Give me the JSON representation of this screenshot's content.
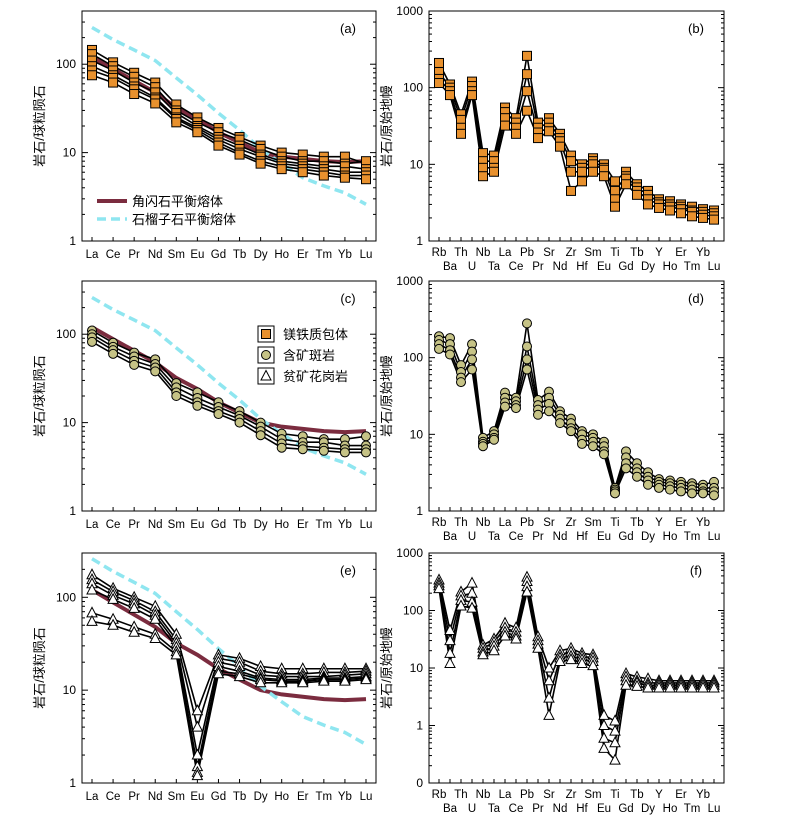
{
  "figure": {
    "legend_lines": [
      "角闪石平衡熔体",
      "石榴子石平衡熔体"
    ],
    "legend_symbols": [
      "镁铁质包体",
      "含矿斑岩",
      "贫矿花岗岩"
    ]
  },
  "colors": {
    "amphibole_line": "#7b2c3f",
    "garnet_line": "#8fe6f0",
    "enclave_fill": "#e8912e",
    "porphyry_fill": "#c6c386",
    "granite_fill": "#ffffff",
    "series_line": "#000000"
  },
  "chart_data": [
    {
      "panel": "(a)",
      "type": "line",
      "yscale": "log",
      "ylim": [
        1,
        400
      ],
      "ylabel": "岩石/球粒陨石",
      "categories": [
        "La",
        "Ce",
        "Pr",
        "Nd",
        "Sm",
        "Eu",
        "Gd",
        "Tb",
        "Dy",
        "Ho",
        "Er",
        "Tm",
        "Yb",
        "Lu"
      ],
      "yticks": [
        "1",
        "10",
        "100"
      ],
      "reference_lines": [
        {
          "name": "角闪石平衡熔体",
          "style": "amphibole",
          "values": [
            120,
            88,
            65,
            48,
            32,
            24,
            17,
            13,
            10,
            9,
            8.5,
            8,
            7.8,
            8
          ]
        },
        {
          "name": "石榴子石平衡熔体",
          "style": "garnet",
          "values": [
            260,
            190,
            145,
            110,
            70,
            45,
            28,
            18,
            11,
            7.5,
            5.2,
            4.2,
            3.5,
            2.6
          ]
        }
      ],
      "marker": "square",
      "series": [
        {
          "values": [
            145,
            105,
            80,
            62,
            35,
            25,
            19,
            15,
            12,
            10,
            9.5,
            9,
            9,
            7.5
          ]
        },
        {
          "values": [
            130,
            95,
            72,
            55,
            30,
            22,
            17,
            14,
            11,
            9,
            8,
            8,
            7.5,
            8
          ]
        },
        {
          "values": [
            110,
            85,
            62,
            48,
            28,
            20,
            15,
            12,
            9.5,
            8,
            7.5,
            7,
            7,
            6.5
          ]
        },
        {
          "values": [
            95,
            75,
            56,
            42,
            25,
            19,
            14,
            11,
            9,
            7.5,
            7,
            6.5,
            6,
            6
          ]
        },
        {
          "values": [
            85,
            70,
            52,
            40,
            24,
            18,
            13,
            10,
            8,
            7,
            6.5,
            6,
            5.5,
            5.5
          ]
        },
        {
          "values": [
            75,
            62,
            46,
            36,
            22,
            17,
            12,
            9.5,
            7.5,
            6.5,
            6,
            5.5,
            5.2,
            5
          ]
        }
      ]
    },
    {
      "panel": "(b)",
      "type": "line",
      "yscale": "log",
      "ylim": [
        1,
        1000
      ],
      "ylabel": "岩石/原始地幔",
      "categories": [
        "Rb",
        "Ba",
        "Th",
        "U",
        "Nb",
        "Ta",
        "La",
        "Ce",
        "Pb",
        "Pr",
        "Sr",
        "Nd",
        "Zr",
        "Hf",
        "Sm",
        "Eu",
        "Ti",
        "Gd",
        "Tb",
        "Dy",
        "Y",
        "Ho",
        "Er",
        "Tm",
        "Yb",
        "Lu"
      ],
      "yticks": [
        "1",
        "10",
        "100",
        "1000"
      ],
      "marker": "square",
      "series": [
        {
          "values": [
            210,
            110,
            45,
            120,
            14,
            13,
            55,
            40,
            260,
            35,
            40,
            25,
            13,
            10,
            12,
            10,
            6,
            8,
            5.5,
            4.5,
            3.5,
            3.3,
            3,
            2.8,
            2.6,
            2.5
          ]
        },
        {
          "values": [
            160,
            100,
            38,
            105,
            11,
            11,
            48,
            35,
            150,
            30,
            35,
            22,
            11,
            9,
            11,
            9,
            4.5,
            7,
            5,
            4,
            3.2,
            3,
            2.8,
            2.5,
            2.4,
            2.3
          ]
        },
        {
          "values": [
            130,
            90,
            30,
            90,
            9,
            9,
            40,
            30,
            90,
            26,
            30,
            20,
            8,
            8,
            10,
            8.5,
            3.5,
            6.5,
            4.5,
            3.5,
            3,
            2.8,
            2.6,
            2.4,
            2.2,
            2.1
          ]
        },
        {
          "values": [
            115,
            80,
            25,
            80,
            7,
            8,
            32,
            25,
            50,
            22,
            27,
            17,
            4.5,
            6,
            8,
            7,
            2.8,
            5.5,
            4,
            3,
            2.7,
            2.5,
            2.3,
            2.1,
            2,
            1.9
          ]
        }
      ]
    },
    {
      "panel": "(c)",
      "type": "line",
      "yscale": "log",
      "ylim": [
        1,
        400
      ],
      "ylabel": "岩石/球粒陨石",
      "categories": [
        "La",
        "Ce",
        "Pr",
        "Nd",
        "Sm",
        "Eu",
        "Gd",
        "Tb",
        "Dy",
        "Ho",
        "Er",
        "Tm",
        "Yb",
        "Lu"
      ],
      "yticks": [
        "1",
        "10",
        "100"
      ],
      "reference_lines": [
        {
          "name": "角闪石平衡熔体",
          "style": "amphibole",
          "values": [
            120,
            88,
            65,
            48,
            32,
            24,
            17,
            13,
            10,
            9,
            8.5,
            8,
            7.8,
            8
          ]
        },
        {
          "name": "石榴子石平衡熔体",
          "style": "garnet",
          "values": [
            260,
            190,
            145,
            110,
            70,
            45,
            28,
            18,
            11,
            7.5,
            5.2,
            4.2,
            3.5,
            2.6
          ]
        }
      ],
      "marker": "circle",
      "series": [
        {
          "values": [
            110,
            80,
            62,
            52,
            28,
            22,
            17,
            13.5,
            10,
            7.5,
            7,
            6.5,
            6.5,
            7
          ]
        },
        {
          "values": [
            100,
            72,
            56,
            46,
            25,
            19,
            15,
            12,
            9,
            6.5,
            6,
            6,
            5.5,
            5.5
          ]
        },
        {
          "values": [
            92,
            66,
            50,
            42,
            22,
            17,
            13.5,
            11,
            8,
            5.8,
            5.4,
            5.2,
            5,
            5
          ]
        },
        {
          "values": [
            82,
            60,
            45,
            38,
            20,
            15.5,
            12.5,
            10,
            7.2,
            5.2,
            5,
            4.8,
            4.6,
            4.6
          ]
        }
      ],
      "legend": [
        "镁铁质包体",
        "含矿斑岩",
        "贫矿花岗岩"
      ]
    },
    {
      "panel": "(d)",
      "type": "line",
      "yscale": "log",
      "ylim": [
        1,
        1000
      ],
      "ylabel": "岩石/原始地幔",
      "categories": [
        "Rb",
        "Ba",
        "Th",
        "U",
        "Nb",
        "Ta",
        "La",
        "Ce",
        "Pb",
        "Pr",
        "Sr",
        "Nd",
        "Zr",
        "Hf",
        "Sm",
        "Eu",
        "Ti",
        "Gd",
        "Tb",
        "Dy",
        "Y",
        "Ho",
        "Er",
        "Tm",
        "Yb",
        "Lu"
      ],
      "yticks": [
        "1",
        "10",
        "100",
        "1000"
      ],
      "marker": "circle",
      "series": [
        {
          "values": [
            190,
            180,
            80,
            150,
            9,
            11,
            35,
            30,
            280,
            28,
            36,
            20,
            16,
            11,
            10,
            8,
            2,
            6,
            4.2,
            3.2,
            2.6,
            2.5,
            2.4,
            2.3,
            2.2,
            2.4
          ]
        },
        {
          "values": [
            170,
            150,
            65,
            120,
            8,
            10,
            30,
            27,
            140,
            24,
            30,
            18,
            14,
            10,
            9,
            7,
            1.9,
            5,
            3.6,
            2.8,
            2.4,
            2.3,
            2.2,
            2.1,
            2,
            2
          ]
        },
        {
          "values": [
            150,
            125,
            55,
            95,
            7.5,
            9,
            26,
            24,
            95,
            21,
            25,
            16,
            12,
            8.5,
            8,
            6,
            1.8,
            4.2,
            3.2,
            2.5,
            2.2,
            2.1,
            2,
            1.9,
            1.8,
            1.8
          ]
        },
        {
          "values": [
            130,
            110,
            48,
            70,
            7,
            8.5,
            23,
            22,
            70,
            18,
            20,
            14,
            11,
            7.5,
            7,
            5.5,
            1.7,
            3.6,
            2.8,
            2.2,
            2,
            1.9,
            1.8,
            1.7,
            1.7,
            1.6
          ]
        }
      ]
    },
    {
      "panel": "(e)",
      "type": "line",
      "yscale": "log",
      "ylim": [
        1,
        300
      ],
      "ylabel": "岩石/球粒陨石",
      "categories": [
        "La",
        "Ce",
        "Pr",
        "Nd",
        "Sm",
        "Eu",
        "Gd",
        "Tb",
        "Dy",
        "Ho",
        "Er",
        "Tm",
        "Yb",
        "Lu"
      ],
      "yticks": [
        "1",
        "10",
        "100"
      ],
      "reference_lines": [
        {
          "name": "角闪石平衡熔体",
          "style": "amphibole",
          "values": [
            120,
            88,
            65,
            48,
            32,
            24,
            17,
            13,
            10,
            9,
            8.5,
            8,
            7.8,
            8
          ]
        },
        {
          "name": "石榴子石平衡熔体",
          "style": "garnet",
          "values": [
            260,
            190,
            145,
            110,
            70,
            45,
            28,
            18,
            11,
            7.5,
            5.2,
            4.2,
            3.5,
            2.6
          ]
        }
      ],
      "marker": "triangle",
      "series": [
        {
          "values": [
            175,
            125,
            100,
            80,
            40,
            6,
            24,
            22,
            18,
            17,
            17,
            17,
            17,
            17
          ]
        },
        {
          "values": [
            155,
            115,
            92,
            70,
            35,
            4,
            22,
            20,
            16,
            15,
            15,
            15.5,
            15.5,
            16
          ]
        },
        {
          "values": [
            140,
            105,
            85,
            64,
            32,
            2,
            20,
            18,
            14.5,
            14,
            14,
            14,
            14.5,
            15
          ]
        },
        {
          "values": [
            120,
            95,
            76,
            58,
            29,
            1.5,
            18,
            16,
            13.5,
            13,
            13,
            13.5,
            13.5,
            14
          ]
        },
        {
          "values": [
            68,
            58,
            48,
            40,
            26,
            1.3,
            16,
            15,
            13,
            12.5,
            12.5,
            13,
            13,
            13.5
          ]
        },
        {
          "values": [
            55,
            50,
            42,
            36,
            24,
            1.2,
            15,
            14,
            12,
            12,
            12,
            12.5,
            12.5,
            13
          ]
        }
      ]
    },
    {
      "panel": "(f)",
      "type": "line",
      "yscale": "log",
      "ylim": [
        0,
        1000
      ],
      "ylabel": "岩石/原始地幔",
      "categories": [
        "Rb",
        "Ba",
        "Th",
        "U",
        "Nb",
        "Ta",
        "La",
        "Ce",
        "Pb",
        "Pr",
        "Sr",
        "Nd",
        "Zr",
        "Hf",
        "Sm",
        "Eu",
        "Ti",
        "Gd",
        "Tb",
        "Dy",
        "Y",
        "Ho",
        "Er",
        "Tm",
        "Yb",
        "Lu"
      ],
      "yticks": [
        "0",
        "1",
        "10",
        "100",
        "1000"
      ],
      "marker": "triangle",
      "series": [
        {
          "values": [
            340,
            45,
            210,
            300,
            25,
            32,
            60,
            50,
            380,
            35,
            10,
            20,
            22,
            18,
            17,
            1.5,
            1.2,
            8,
            7,
            6.5,
            6,
            6,
            6,
            6,
            6,
            6
          ]
        },
        {
          "values": [
            300,
            30,
            180,
            200,
            22,
            28,
            50,
            42,
            320,
            30,
            6,
            17,
            19,
            16,
            15,
            1,
            0.8,
            7,
            6,
            5.5,
            5.5,
            5.5,
            5.5,
            5.5,
            5.5,
            5.5
          ]
        },
        {
          "values": [
            270,
            18,
            150,
            140,
            19,
            24,
            42,
            36,
            260,
            26,
            3,
            15,
            16,
            14,
            13,
            0.6,
            0.5,
            6,
            5.5,
            5,
            5,
            5,
            5,
            5,
            5,
            5
          ]
        },
        {
          "values": [
            240,
            12,
            120,
            110,
            17,
            20,
            36,
            32,
            210,
            22,
            1.5,
            13,
            14,
            12,
            11,
            0.4,
            0.25,
            5,
            4.8,
            4.5,
            4.5,
            4.5,
            4.5,
            4.5,
            4.5,
            4.5
          ]
        }
      ]
    }
  ]
}
